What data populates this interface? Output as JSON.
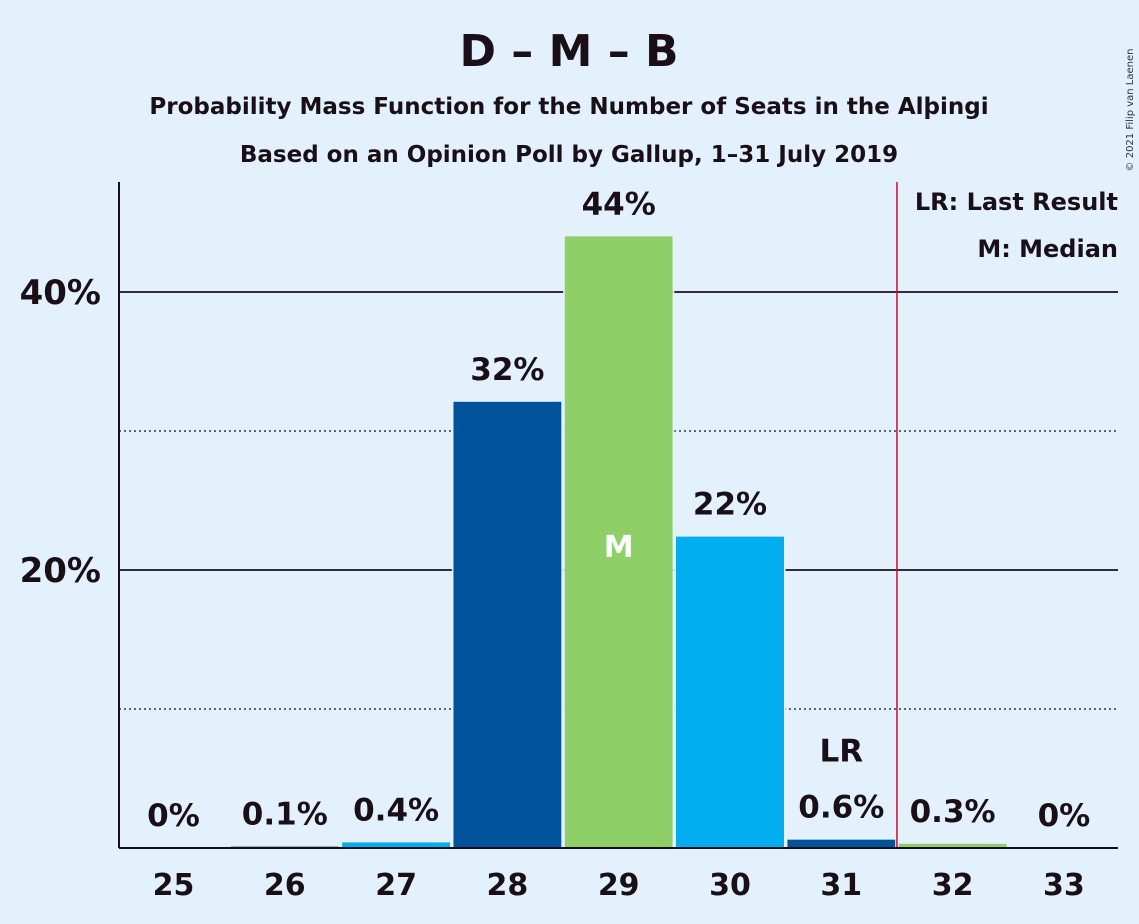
{
  "copyright": "© 2021 Filip van Laenen",
  "chart_data": {
    "type": "bar",
    "title": "D – M – B",
    "subtitle_lines": [
      "Probability Mass Function for the Number of Seats in the Alþingi",
      "Based on an Opinion Poll by Gallup, 1–31 July 2019"
    ],
    "categories": [
      "25",
      "26",
      "27",
      "28",
      "29",
      "30",
      "31",
      "32",
      "33"
    ],
    "values": [
      0,
      0.1,
      0.4,
      32.1,
      44.0,
      22.4,
      0.6,
      0.3,
      0
    ],
    "value_labels": [
      "0%",
      "0.1%",
      "0.4%",
      "32%",
      "44%",
      "22%",
      "0.6%",
      "0.3%",
      "0%"
    ],
    "bar_colors": [
      "#00aeef",
      "#00529b",
      "#00aeef",
      "#00529b",
      "#8ecf67",
      "#00aeef",
      "#00529b",
      "#8ecf67",
      "#00aeef"
    ],
    "ylim": [
      0,
      48
    ],
    "yticks": [
      20,
      40
    ],
    "ytick_labels": [
      "20%",
      "40%"
    ],
    "minor_gridlines": [
      10,
      30
    ],
    "median": {
      "category": "29",
      "label": "M"
    },
    "last_result": {
      "category": "31",
      "label": "LR"
    },
    "majority_line_after_category": "31",
    "majority_line_color": "#c8102e",
    "legend": {
      "position": "top-right",
      "items": [
        "LR: Last Result",
        "M: Median"
      ]
    }
  }
}
